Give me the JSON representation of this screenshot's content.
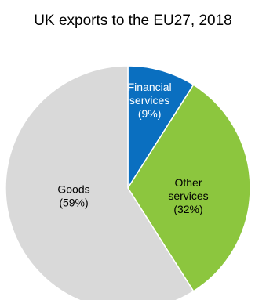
{
  "chart_data": {
    "type": "pie",
    "title": "UK exports to the EU27, 2018",
    "slices": [
      {
        "name": "Financial services",
        "value": 9,
        "label_lines": [
          "Financial",
          "services",
          "(9%)"
        ],
        "color": "#0a6fc0",
        "label_color": "#ffffff"
      },
      {
        "name": "Other services",
        "value": 32,
        "label_lines": [
          "Other",
          "services",
          "(32%)"
        ],
        "color": "#8cc63e",
        "label_color": "#000000"
      },
      {
        "name": "Goods",
        "value": 59,
        "label_lines": [
          "Goods",
          "(59%)"
        ],
        "color": "#d9d9d9",
        "label_color": "#000000"
      }
    ],
    "start_angle": "12 o'clock",
    "direction": "clockwise",
    "legend": "none"
  }
}
